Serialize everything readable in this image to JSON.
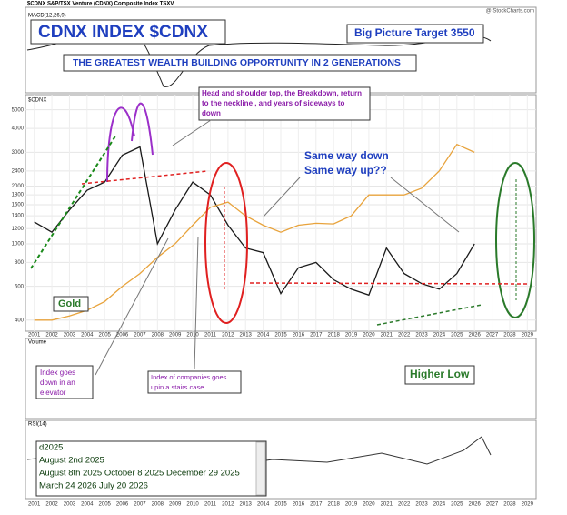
{
  "header": {
    "symbol": "$CDNX S&P/TSX Venture (CDNX) Composite Index  TSXV",
    "source": "@ StockCharts.com"
  },
  "chart_data": {
    "type": "line",
    "title": "CDNX INDEX $CDNX",
    "subtitle": "THE GREATEST WEALTH BUILDING OPPORTUNITY IN 2 GENERATIONS",
    "target": "Big Picture Target 3550",
    "annotations": {
      "head_shoulder": [
        "Head and shoulder top, the  Breakdown, return",
        "to the neckline , and years of sideways to",
        "down"
      ],
      "same_way": [
        "Same way down",
        "Same way up??"
      ],
      "elevator": [
        "Index  goes",
        "down in an",
        "elevator"
      ],
      "stairs": [
        "Index of companies goes",
        "upin a stairs case"
      ],
      "higher_low": "Higher Low"
    },
    "panel_labels": {
      "macd": "MACD(12,26,9)",
      "volume": "Volume",
      "rsi": "RSI(14)"
    },
    "x": [
      2001,
      2002,
      2003,
      2004,
      2005,
      2006,
      2007,
      2008,
      2009,
      2010,
      2011,
      2012,
      2013,
      2014,
      2015,
      2016,
      2017,
      2018,
      2019,
      2020,
      2021,
      2022,
      2023,
      2024,
      2025,
      2026,
      2027,
      2028,
      2029
    ],
    "xlim": [
      2000.5,
      2029.5
    ],
    "xticks": [
      2001,
      2002,
      2003,
      2004,
      2005,
      2006,
      2007,
      2008,
      2009,
      2010,
      2011,
      2012,
      2013,
      2014,
      2015,
      2016,
      2017,
      2018,
      2019,
      2020,
      2021,
      2022,
      2023,
      2024,
      2025,
      2026,
      2027,
      2028,
      2029
    ],
    "ylim": [
      350,
      6000
    ],
    "log_scale": true,
    "yticks": [
      400,
      600,
      800,
      1000,
      1200,
      1400,
      1600,
      1800,
      2000,
      2400,
      3000,
      4000,
      5000
    ],
    "series": [
      {
        "name": "$CDNX",
        "color": "#1a1a1a",
        "values": [
          1300,
          1150,
          1500,
          1900,
          2100,
          2900,
          3200,
          1000,
          1500,
          2100,
          1800,
          1250,
          950,
          900,
          550,
          750,
          800,
          650,
          580,
          540,
          950,
          700,
          620,
          580,
          700,
          1000,
          null,
          null,
          null
        ]
      },
      {
        "name": "Gold",
        "color": "#e8a33c",
        "values": [
          400,
          400,
          420,
          450,
          500,
          600,
          700,
          850,
          1000,
          1250,
          1550,
          1650,
          1400,
          1250,
          1150,
          1250,
          1280,
          1270,
          1400,
          1800,
          1800,
          1800,
          1950,
          2400,
          3300,
          3000,
          null,
          null,
          null
        ]
      }
    ],
    "date_box": [
      "d2025",
      "August 2nd 2025",
      "August 8th 2025 October 8 2025 December 29 2025",
      "March 24 2026 July 20 2026"
    ]
  }
}
